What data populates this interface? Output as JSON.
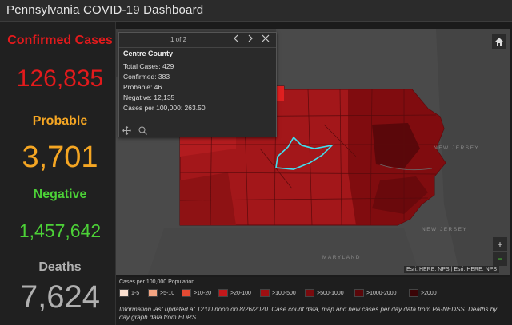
{
  "app": {
    "title": "Pennsylvania COVID-19 Dashboard"
  },
  "stats": {
    "confirmed_label": "Confirmed Cases",
    "confirmed_value": "126,835",
    "probable_label": "Probable",
    "probable_value": "3,701",
    "negative_label": "Negative",
    "negative_value": "1,457,642",
    "deaths_label": "Deaths",
    "deaths_value": "7,624"
  },
  "colors": {
    "confirmed": "#e31a1c",
    "probable": "#f5a623",
    "negative": "#4cd137",
    "deaths": "#b0b0b0",
    "highlight": "#40e0f0"
  },
  "popup": {
    "pager": "1 of 2",
    "title": "Centre County",
    "lines": [
      "Total Cases: 429",
      "Confirmed: 383",
      "Probable: 46",
      "Negative: 12,135",
      "Cases per 100,000: 263.50"
    ],
    "prev_icon": "chevron-left",
    "next_icon": "chevron-right",
    "close_icon": "close",
    "zoom_icon": "zoom-to",
    "pan_icon": "move"
  },
  "map": {
    "labels": {
      "new_jersey_1": "NEW JERSEY",
      "new_jersey_2": "NEW JERSEY",
      "maryland": "MARYLAND"
    },
    "attribution": "Esri, HERE, NPS | Esri, HERE, NPS",
    "buttons": {
      "home": "home-icon",
      "zoom_in": "+",
      "zoom_out": "−"
    }
  },
  "legend": {
    "title": "Cases per 100,000 Population",
    "items": [
      "1-5",
      ">5-10",
      ">10-20",
      ">20-100",
      ">100-500",
      ">500-1000",
      ">1000-2000",
      ">2000"
    ],
    "colors": [
      "#fbe0d0",
      "#f4a582",
      "#e34a33",
      "#c2181b",
      "#9e0f12",
      "#7a0b0e",
      "#5a070a",
      "#3a0406"
    ]
  },
  "info_text": "Information last updated at 12:00 noon on 8/26/2020. Case count data, map and new cases per day data from PA-NEDSS.  Deaths by day graph data from EDRS."
}
